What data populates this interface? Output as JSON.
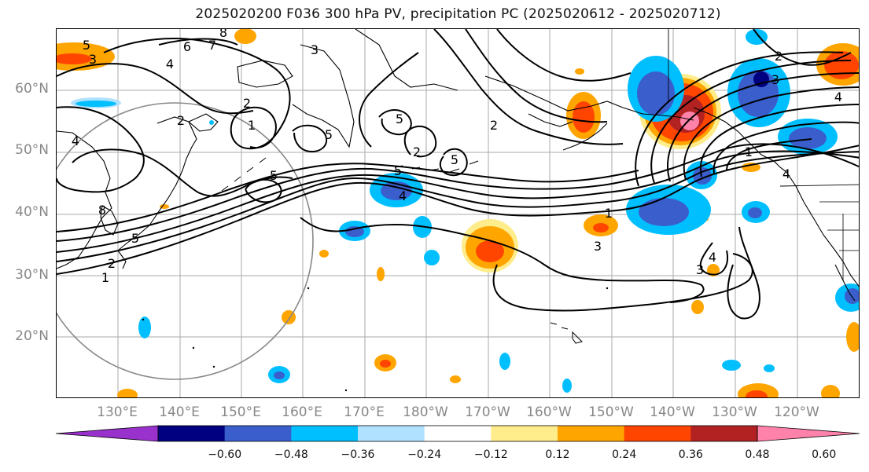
{
  "title": "2025020200 F036 300 hPa PV, precipitation PC (2025020612 - 2025020712)",
  "lat_labels": [
    "60°N",
    "50°N",
    "40°N",
    "30°N",
    "20°N"
  ],
  "lon_labels": [
    "130°E",
    "140°E",
    "150°E",
    "160°E",
    "170°E",
    "180°W",
    "170°W",
    "160°W",
    "150°W",
    "140°W",
    "130°W",
    "120°W"
  ],
  "colorbar": {
    "ticks": [
      "−0.60",
      "−0.48",
      "−0.36",
      "−0.24",
      "−0.12",
      "0.12",
      "0.24",
      "0.36",
      "0.48",
      "0.60"
    ],
    "colors": [
      "#9932CC",
      "#000080",
      "#3A5FCD",
      "#00BFFF",
      "#B0E2FF",
      "#FFFFFF",
      "#FFEC8B",
      "#FFA500",
      "#FF4500",
      "#B22222",
      "#FF82AB"
    ]
  },
  "contour_labels": [
    "5",
    "3",
    "8",
    "6",
    "7",
    "4",
    "3",
    "2",
    "2",
    "1",
    "4",
    "5",
    "5",
    "5",
    "2",
    "5",
    "5",
    "4",
    "1",
    "2",
    "3",
    "4",
    "3",
    "4",
    "1",
    "2",
    "3",
    "4",
    "2",
    "5",
    "1",
    "8"
  ]
}
